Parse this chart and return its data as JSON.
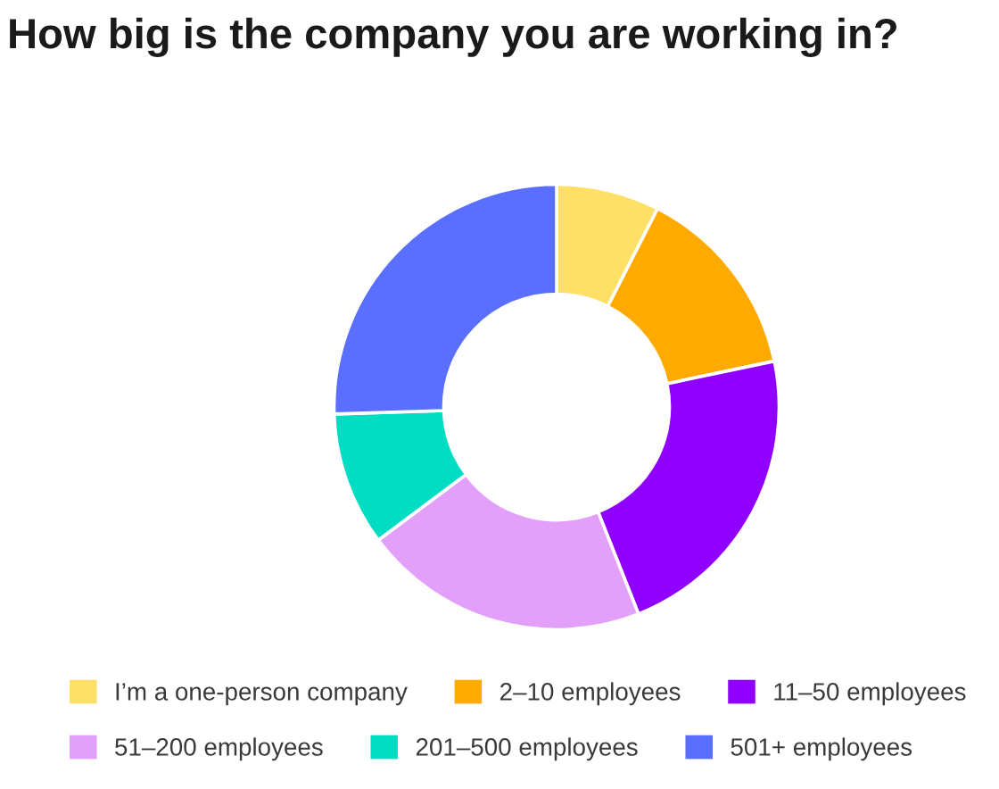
{
  "chart_data": {
    "type": "donut",
    "title": "How big is the company you are working in?",
    "categories": [
      "I’m a one-person company",
      "2–10 employees",
      "11–50 employees",
      "51–200 employees",
      "201–500 employees",
      "501+ employees"
    ],
    "values": [
      7.5,
      14.2,
      22.3,
      20.8,
      9.7,
      25.5
    ],
    "colors": [
      "#ffe066",
      "#ffaa00",
      "#9000ff",
      "#e3a0fa",
      "#00ddc3",
      "#5b6fff"
    ],
    "legend": "bottom"
  }
}
